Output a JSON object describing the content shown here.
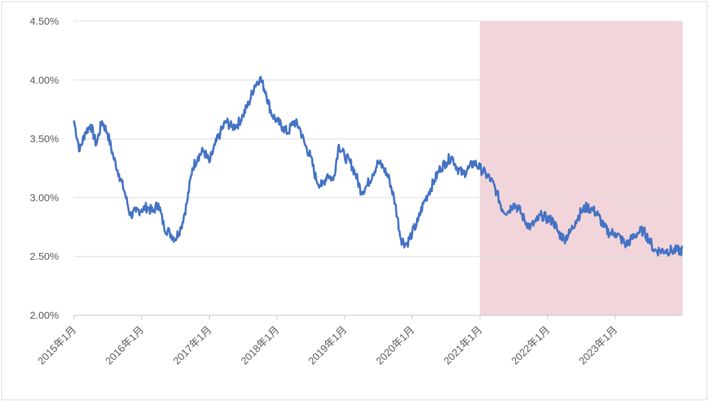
{
  "chart_data": {
    "type": "line",
    "title": "",
    "xlabel": "",
    "ylabel": "",
    "x_ticks": [
      "2015年1月",
      "2016年1月",
      "2017年1月",
      "2018年1月",
      "2019年1月",
      "2020年1月",
      "2021年1月",
      "2022年1月",
      "2023年1月"
    ],
    "y_ticks": [
      "4.50%",
      "4.00%",
      "3.50%",
      "3.00%",
      "2.50%",
      "2.00%"
    ],
    "ylim": [
      2.0,
      4.5
    ],
    "xlim": [
      "2015-01-01",
      "2023-12-31"
    ],
    "grid": true,
    "legend": "none",
    "shaded_region": {
      "from": "2021-01-01",
      "to": "2023-12-31",
      "color": "#f2d5da"
    },
    "colors": {
      "line": "#4472c4",
      "grid": "#d9d9d9",
      "axis": "#bfbfbf",
      "text": "#595959"
    },
    "series": [
      {
        "x": [
          "2015-01",
          "2015-02",
          "2015-03",
          "2015-04",
          "2015-05",
          "2015-06",
          "2015-07",
          "2015-08",
          "2015-09",
          "2015-10",
          "2015-11",
          "2015-12",
          "2016-01",
          "2016-02",
          "2016-03",
          "2016-04",
          "2016-05",
          "2016-06",
          "2016-07",
          "2016-08",
          "2016-09",
          "2016-10",
          "2016-11",
          "2016-12",
          "2017-01",
          "2017-02",
          "2017-03",
          "2017-04",
          "2017-05",
          "2017-06",
          "2017-07",
          "2017-08",
          "2017-09",
          "2017-10",
          "2017-11",
          "2017-12",
          "2018-01",
          "2018-02",
          "2018-03",
          "2018-04",
          "2018-05",
          "2018-06",
          "2018-07",
          "2018-08",
          "2018-09",
          "2018-10",
          "2018-11",
          "2018-12",
          "2019-01",
          "2019-02",
          "2019-03",
          "2019-04",
          "2019-05",
          "2019-06",
          "2019-07",
          "2019-08",
          "2019-09",
          "2019-10",
          "2019-11",
          "2019-12",
          "2020-01",
          "2020-02",
          "2020-03",
          "2020-04",
          "2020-05",
          "2020-06",
          "2020-07",
          "2020-08",
          "2020-09",
          "2020-10",
          "2020-11",
          "2020-12",
          "2021-01",
          "2021-02",
          "2021-03",
          "2021-04",
          "2021-05",
          "2021-06",
          "2021-07",
          "2021-08",
          "2021-09",
          "2021-10",
          "2021-11",
          "2021-12",
          "2022-01",
          "2022-02",
          "2022-03",
          "2022-04",
          "2022-05",
          "2022-06",
          "2022-07",
          "2022-08",
          "2022-09",
          "2022-10",
          "2022-11",
          "2022-12",
          "2023-01",
          "2023-02",
          "2023-03",
          "2023-04",
          "2023-05",
          "2023-06",
          "2023-07",
          "2023-08",
          "2023-09",
          "2023-10",
          "2023-11",
          "2023-12"
        ],
        "values": [
          3.65,
          3.4,
          3.55,
          3.62,
          3.45,
          3.65,
          3.55,
          3.35,
          3.2,
          3.05,
          2.85,
          2.88,
          2.9,
          2.92,
          2.88,
          2.95,
          2.75,
          2.7,
          2.65,
          2.75,
          2.95,
          3.25,
          3.35,
          3.4,
          3.3,
          3.45,
          3.55,
          3.65,
          3.6,
          3.62,
          3.7,
          3.8,
          3.95,
          4.02,
          3.9,
          3.72,
          3.65,
          3.6,
          3.55,
          3.65,
          3.6,
          3.45,
          3.35,
          3.15,
          3.1,
          3.2,
          3.15,
          3.45,
          3.35,
          3.3,
          3.2,
          3.05,
          3.1,
          3.2,
          3.3,
          3.25,
          3.15,
          2.95,
          2.65,
          2.6,
          2.7,
          2.8,
          2.95,
          3.05,
          3.15,
          3.25,
          3.3,
          3.35,
          3.25,
          3.2,
          3.25,
          3.3,
          3.25,
          3.2,
          3.15,
          3.05,
          2.9,
          2.88,
          2.95,
          2.9,
          2.8,
          2.75,
          2.8,
          2.85,
          2.82,
          2.8,
          2.7,
          2.65,
          2.7,
          2.8,
          2.88,
          2.92,
          2.9,
          2.85,
          2.75,
          2.7,
          2.7,
          2.65,
          2.6,
          2.65,
          2.7,
          2.72,
          2.65,
          2.55,
          2.55,
          2.55,
          2.55,
          2.55
        ]
      }
    ]
  }
}
